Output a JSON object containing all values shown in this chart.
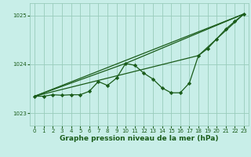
{
  "bg_color": "#c8eee8",
  "grid_color": "#99ccbb",
  "line_color": "#1a5c1a",
  "xlabel": "Graphe pression niveau de la mer (hPa)",
  "xlabel_fontsize": 6.5,
  "xlim": [
    -0.5,
    23.5
  ],
  "ylim": [
    1022.75,
    1025.25
  ],
  "yticks": [
    1023,
    1024,
    1025
  ],
  "xticks": [
    0,
    1,
    2,
    3,
    4,
    5,
    6,
    7,
    8,
    9,
    10,
    11,
    12,
    13,
    14,
    15,
    16,
    17,
    18,
    19,
    20,
    21,
    22,
    23
  ],
  "main_data_x": [
    0,
    1,
    2,
    3,
    4,
    5,
    6,
    7,
    8,
    9,
    10,
    11,
    12,
    13,
    14,
    15,
    16,
    17,
    18,
    19,
    20,
    21,
    22,
    23
  ],
  "main_data_y": [
    1023.35,
    1023.35,
    1023.38,
    1023.37,
    1023.38,
    1023.38,
    1023.45,
    1023.65,
    1023.57,
    1023.72,
    1024.02,
    1023.98,
    1023.82,
    1023.7,
    1023.52,
    1023.42,
    1023.42,
    1023.62,
    1024.18,
    1024.32,
    1024.52,
    1024.72,
    1024.88,
    1025.03
  ],
  "line1_x": [
    0,
    23
  ],
  "line1_y": [
    1023.35,
    1025.03
  ],
  "line2_x": [
    0,
    10,
    23
  ],
  "line2_y": [
    1023.35,
    1024.02,
    1025.03
  ],
  "line3_x": [
    0,
    18,
    23
  ],
  "line3_y": [
    1023.35,
    1024.18,
    1025.03
  ]
}
